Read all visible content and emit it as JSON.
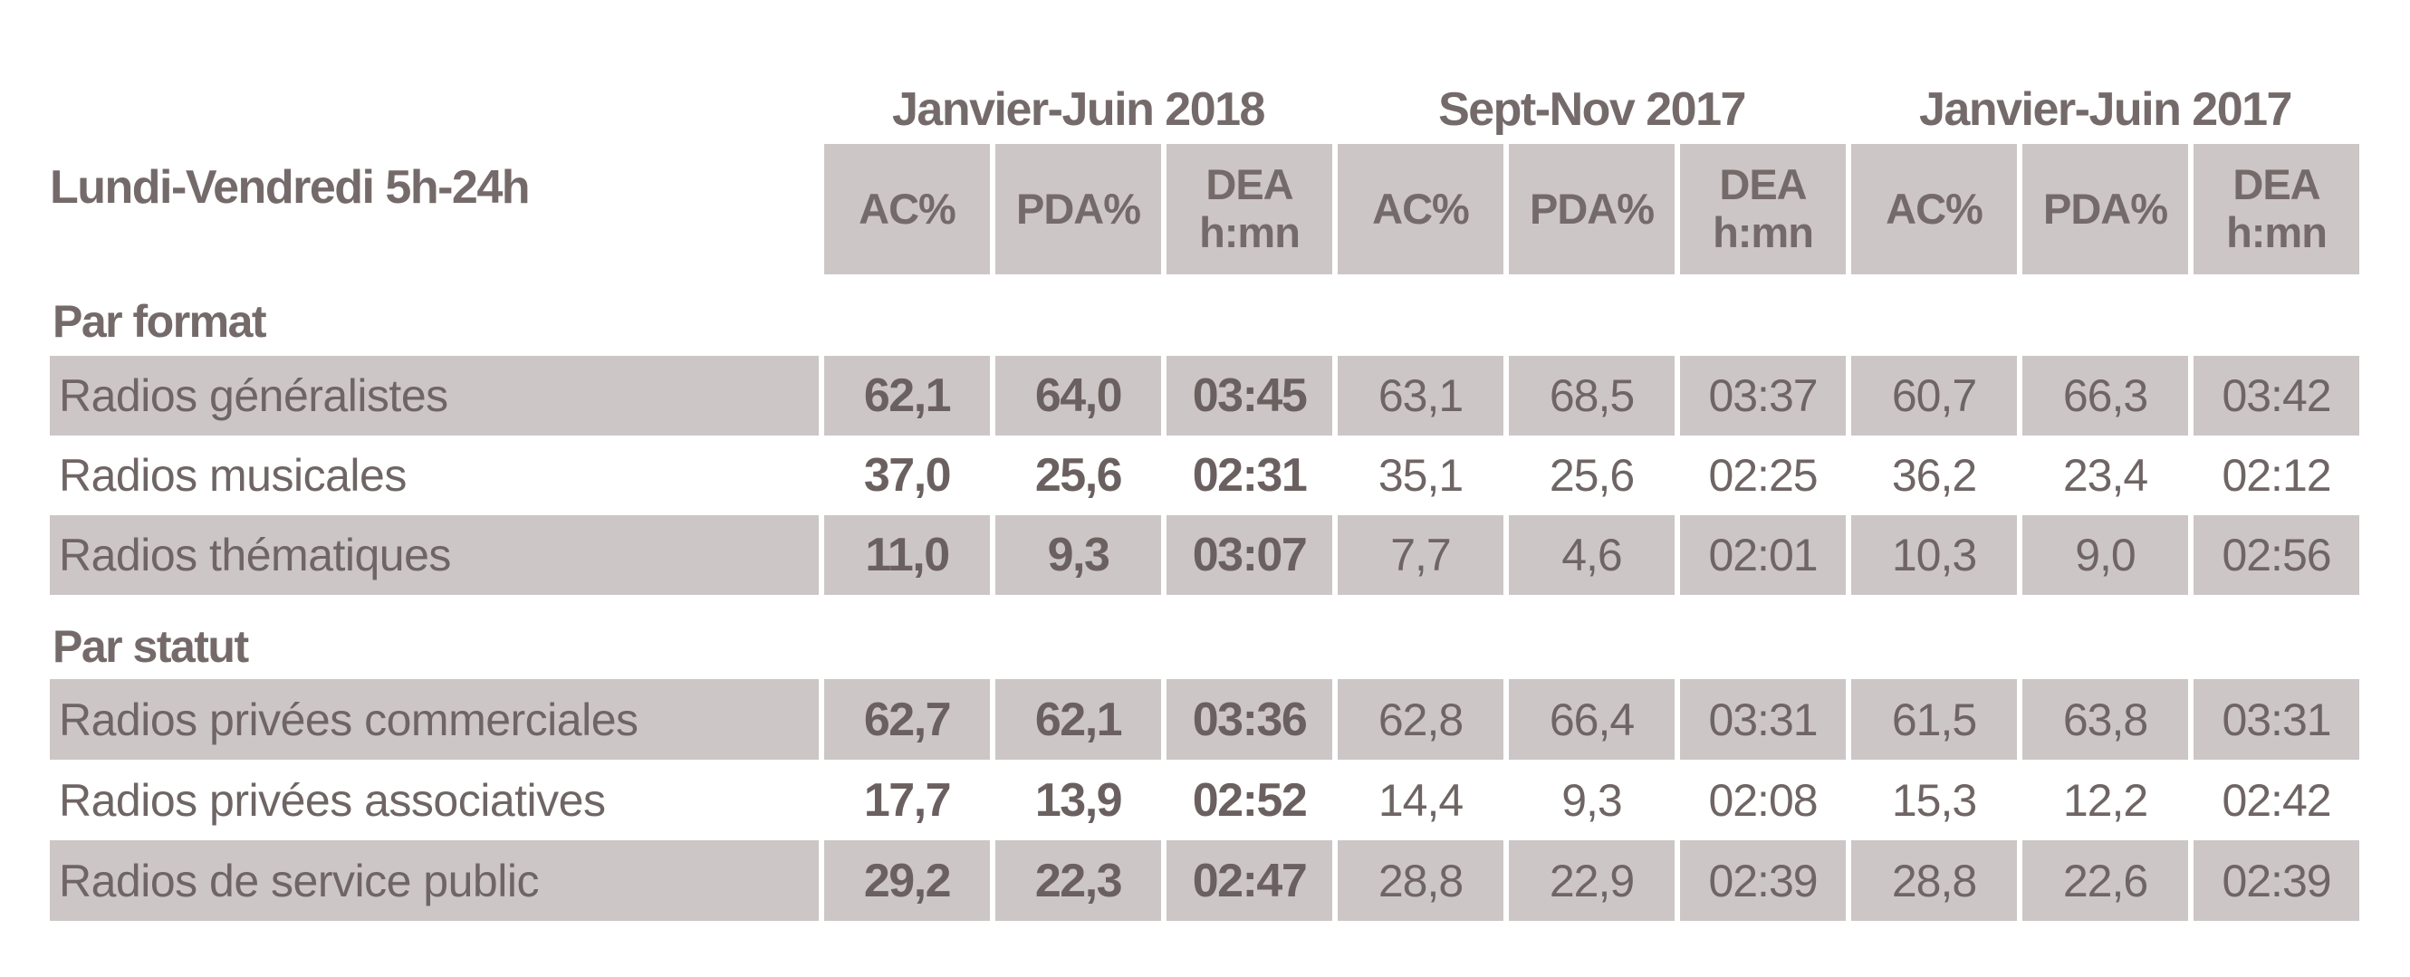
{
  "table": {
    "corner_label": "Lundi-Vendredi 5h-24h",
    "periods": [
      {
        "label": "Janvier-Juin 2018"
      },
      {
        "label": "Sept-Nov 2017"
      },
      {
        "label": "Janvier-Juin 2017"
      }
    ],
    "measure_headers": [
      "AC%",
      "PDA%",
      "DEA\nh:mn"
    ],
    "sections": [
      {
        "title": "Par format",
        "rows": [
          {
            "label": "Radios généralistes",
            "values": [
              "62,1",
              "64,0",
              "03:45",
              "63,1",
              "68,5",
              "03:37",
              "60,7",
              "66,3",
              "03:42"
            ]
          },
          {
            "label": "Radios musicales",
            "values": [
              "37,0",
              "25,6",
              "02:31",
              "35,1",
              "25,6",
              "02:25",
              "36,2",
              "23,4",
              "02:12"
            ]
          },
          {
            "label": "Radios thématiques",
            "values": [
              "11,0",
              "9,3",
              "03:07",
              "7,7",
              "4,6",
              "02:01",
              "10,3",
              "9,0",
              "02:56"
            ]
          }
        ]
      },
      {
        "title": "Par statut",
        "rows": [
          {
            "label": "Radios privées commerciales",
            "values": [
              "62,7",
              "62,1",
              "03:36",
              "62,8",
              "66,4",
              "03:31",
              "61,5",
              "63,8",
              "03:31"
            ]
          },
          {
            "label": "Radios privées associatives",
            "values": [
              "17,7",
              "13,9",
              "02:52",
              "14,4",
              "9,3",
              "02:08",
              "15,3",
              "12,2",
              "02:42"
            ]
          },
          {
            "label": "Radios de service public",
            "values": [
              "29,2",
              "22,3",
              "02:47",
              "28,8",
              "22,9",
              "02:39",
              "28,8",
              "22,6",
              "02:39"
            ]
          }
        ]
      }
    ],
    "colors": {
      "cell_bg": "#cdc6c6",
      "text": "#736867",
      "page_bg": "#ffffff"
    }
  }
}
